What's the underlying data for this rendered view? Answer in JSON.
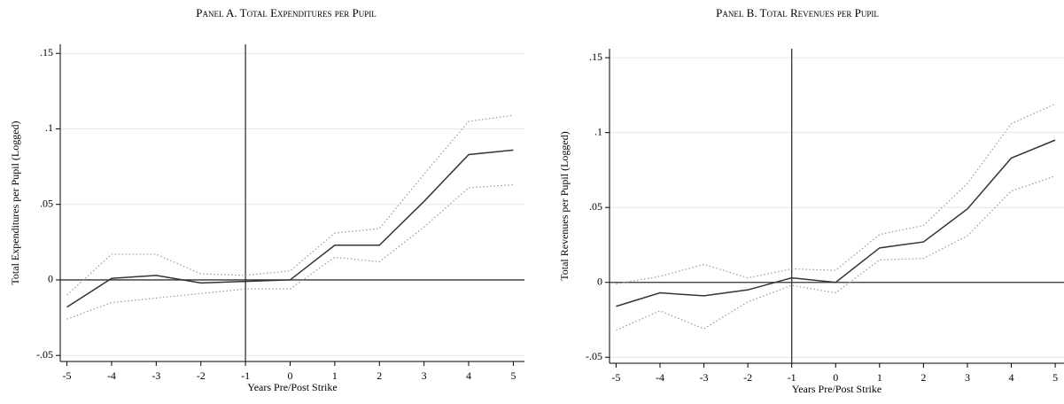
{
  "chart_data": [
    {
      "type": "line",
      "title": "Panel A.   Total Expenditures per Pupil",
      "xlabel": "Years Pre/Post Strike",
      "ylabel": "Total Expenditures per Pupil (Logged)",
      "x": [
        -5,
        -4,
        -3,
        -2,
        -1,
        0,
        1,
        2,
        3,
        4,
        5
      ],
      "series": [
        {
          "color": "#333333",
          "style": "solid",
          "values": [
            -0.018,
            0.001,
            0.003,
            -0.002,
            -0.001,
            0,
            0.023,
            0.023,
            0.052,
            0.083,
            0.086
          ]
        },
        {
          "color": "#9a9a9a",
          "style": "dotted",
          "values": [
            -0.01,
            0.017,
            0.017,
            0.004,
            0.003,
            0.006,
            0.031,
            0.034,
            0.07,
            0.105,
            0.109
          ]
        },
        {
          "color": "#9a9a9a",
          "style": "dotted",
          "values": [
            -0.026,
            -0.015,
            -0.012,
            -0.009,
            -0.006,
            -0.006,
            0.015,
            0.012,
            0.035,
            0.061,
            0.063
          ]
        }
      ],
      "xlim": [
        -5.15,
        5.25
      ],
      "xticks": [
        -5,
        -4,
        -3,
        -2,
        -1,
        0,
        1,
        2,
        3,
        4,
        5
      ],
      "ylim": [
        -0.054,
        0.156
      ],
      "yticks": [
        {
          "value": -0.05,
          "label": "-.05"
        },
        0,
        {
          "value": 0.05,
          "label": ".05"
        },
        {
          "value": 0.1,
          "label": ".1"
        },
        {
          "value": 0.15,
          "label": ".15"
        }
      ],
      "grid": true,
      "vline": -1,
      "hline": 0
    },
    {
      "type": "line",
      "title": "Panel B. Total Revenues per Pupil",
      "xlabel": "Years Pre/Post Strike",
      "ylabel": "Total Revenues per Pupil (Logged)",
      "x": [
        -5,
        -4,
        -3,
        -2,
        -1,
        0,
        1,
        2,
        3,
        4,
        5
      ],
      "series": [
        {
          "color": "#333333",
          "style": "solid",
          "values": [
            -0.016,
            -0.007,
            -0.009,
            -0.005,
            0.003,
            0,
            0.023,
            0.027,
            0.049,
            0.083,
            0.095
          ]
        },
        {
          "color": "#9a9a9a",
          "style": "dotted",
          "values": [
            -0.001,
            0.004,
            0.012,
            0.003,
            0.009,
            0.008,
            0.032,
            0.038,
            0.066,
            0.106,
            0.119
          ]
        },
        {
          "color": "#9a9a9a",
          "style": "dotted",
          "values": [
            -0.032,
            -0.019,
            -0.031,
            -0.013,
            -0.002,
            -0.007,
            0.015,
            0.016,
            0.031,
            0.061,
            0.071
          ]
        }
      ],
      "xlim": [
        -5.15,
        5.2
      ],
      "xticks": [
        -5,
        -4,
        -3,
        -2,
        -1,
        0,
        1,
        2,
        3,
        4,
        5
      ],
      "ylim": [
        -0.054,
        0.156
      ],
      "yticks": [
        {
          "value": -0.05,
          "label": "-.05"
        },
        0,
        {
          "value": 0.05,
          "label": ".05"
        },
        {
          "value": 0.1,
          "label": ".1"
        },
        {
          "value": 0.15,
          "label": ".15"
        }
      ],
      "grid": true,
      "vline": -1,
      "hline": 0
    }
  ]
}
